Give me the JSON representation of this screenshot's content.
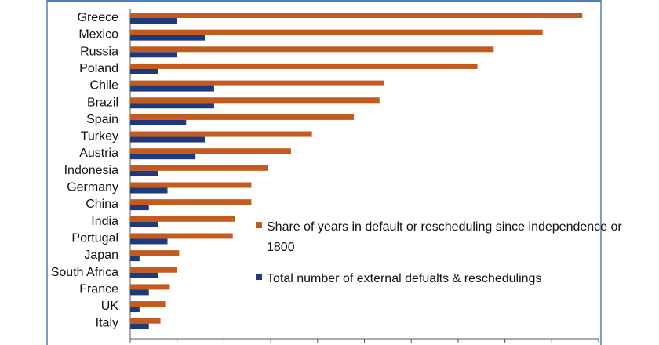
{
  "chart_data": {
    "type": "bar",
    "orientation": "horizontal",
    "categories": [
      "Greece",
      "Mexico",
      "Russia",
      "Poland",
      "Chile",
      "Brazil",
      "Spain",
      "Turkey",
      "Austria",
      "Indonesia",
      "Germany",
      "China",
      "India",
      "Portugal",
      "Japan",
      "South Africa",
      "France",
      "UK",
      "Italy"
    ],
    "series": [
      {
        "name": "Share of years in default or rescheduling since independence or 1800",
        "color": "#C55A1E",
        "values": [
          97,
          88.5,
          78,
          74.5,
          54.5,
          53.5,
          48,
          39,
          34.5,
          29.5,
          26,
          26,
          22.5,
          22,
          10.5,
          10,
          8.5,
          7.5,
          6.5
        ]
      },
      {
        "name": "Total number of external defualts & reschedulings",
        "color": "#1F3A7A",
        "values": [
          10,
          16,
          10,
          6,
          18,
          18,
          12,
          16,
          14,
          6,
          8,
          4,
          6,
          8,
          2,
          6,
          4,
          2,
          4
        ]
      }
    ],
    "xlim": [
      0,
      100
    ],
    "grid": false,
    "legend_position": "right-center",
    "title": "",
    "xlabel": "",
    "ylabel": ""
  }
}
